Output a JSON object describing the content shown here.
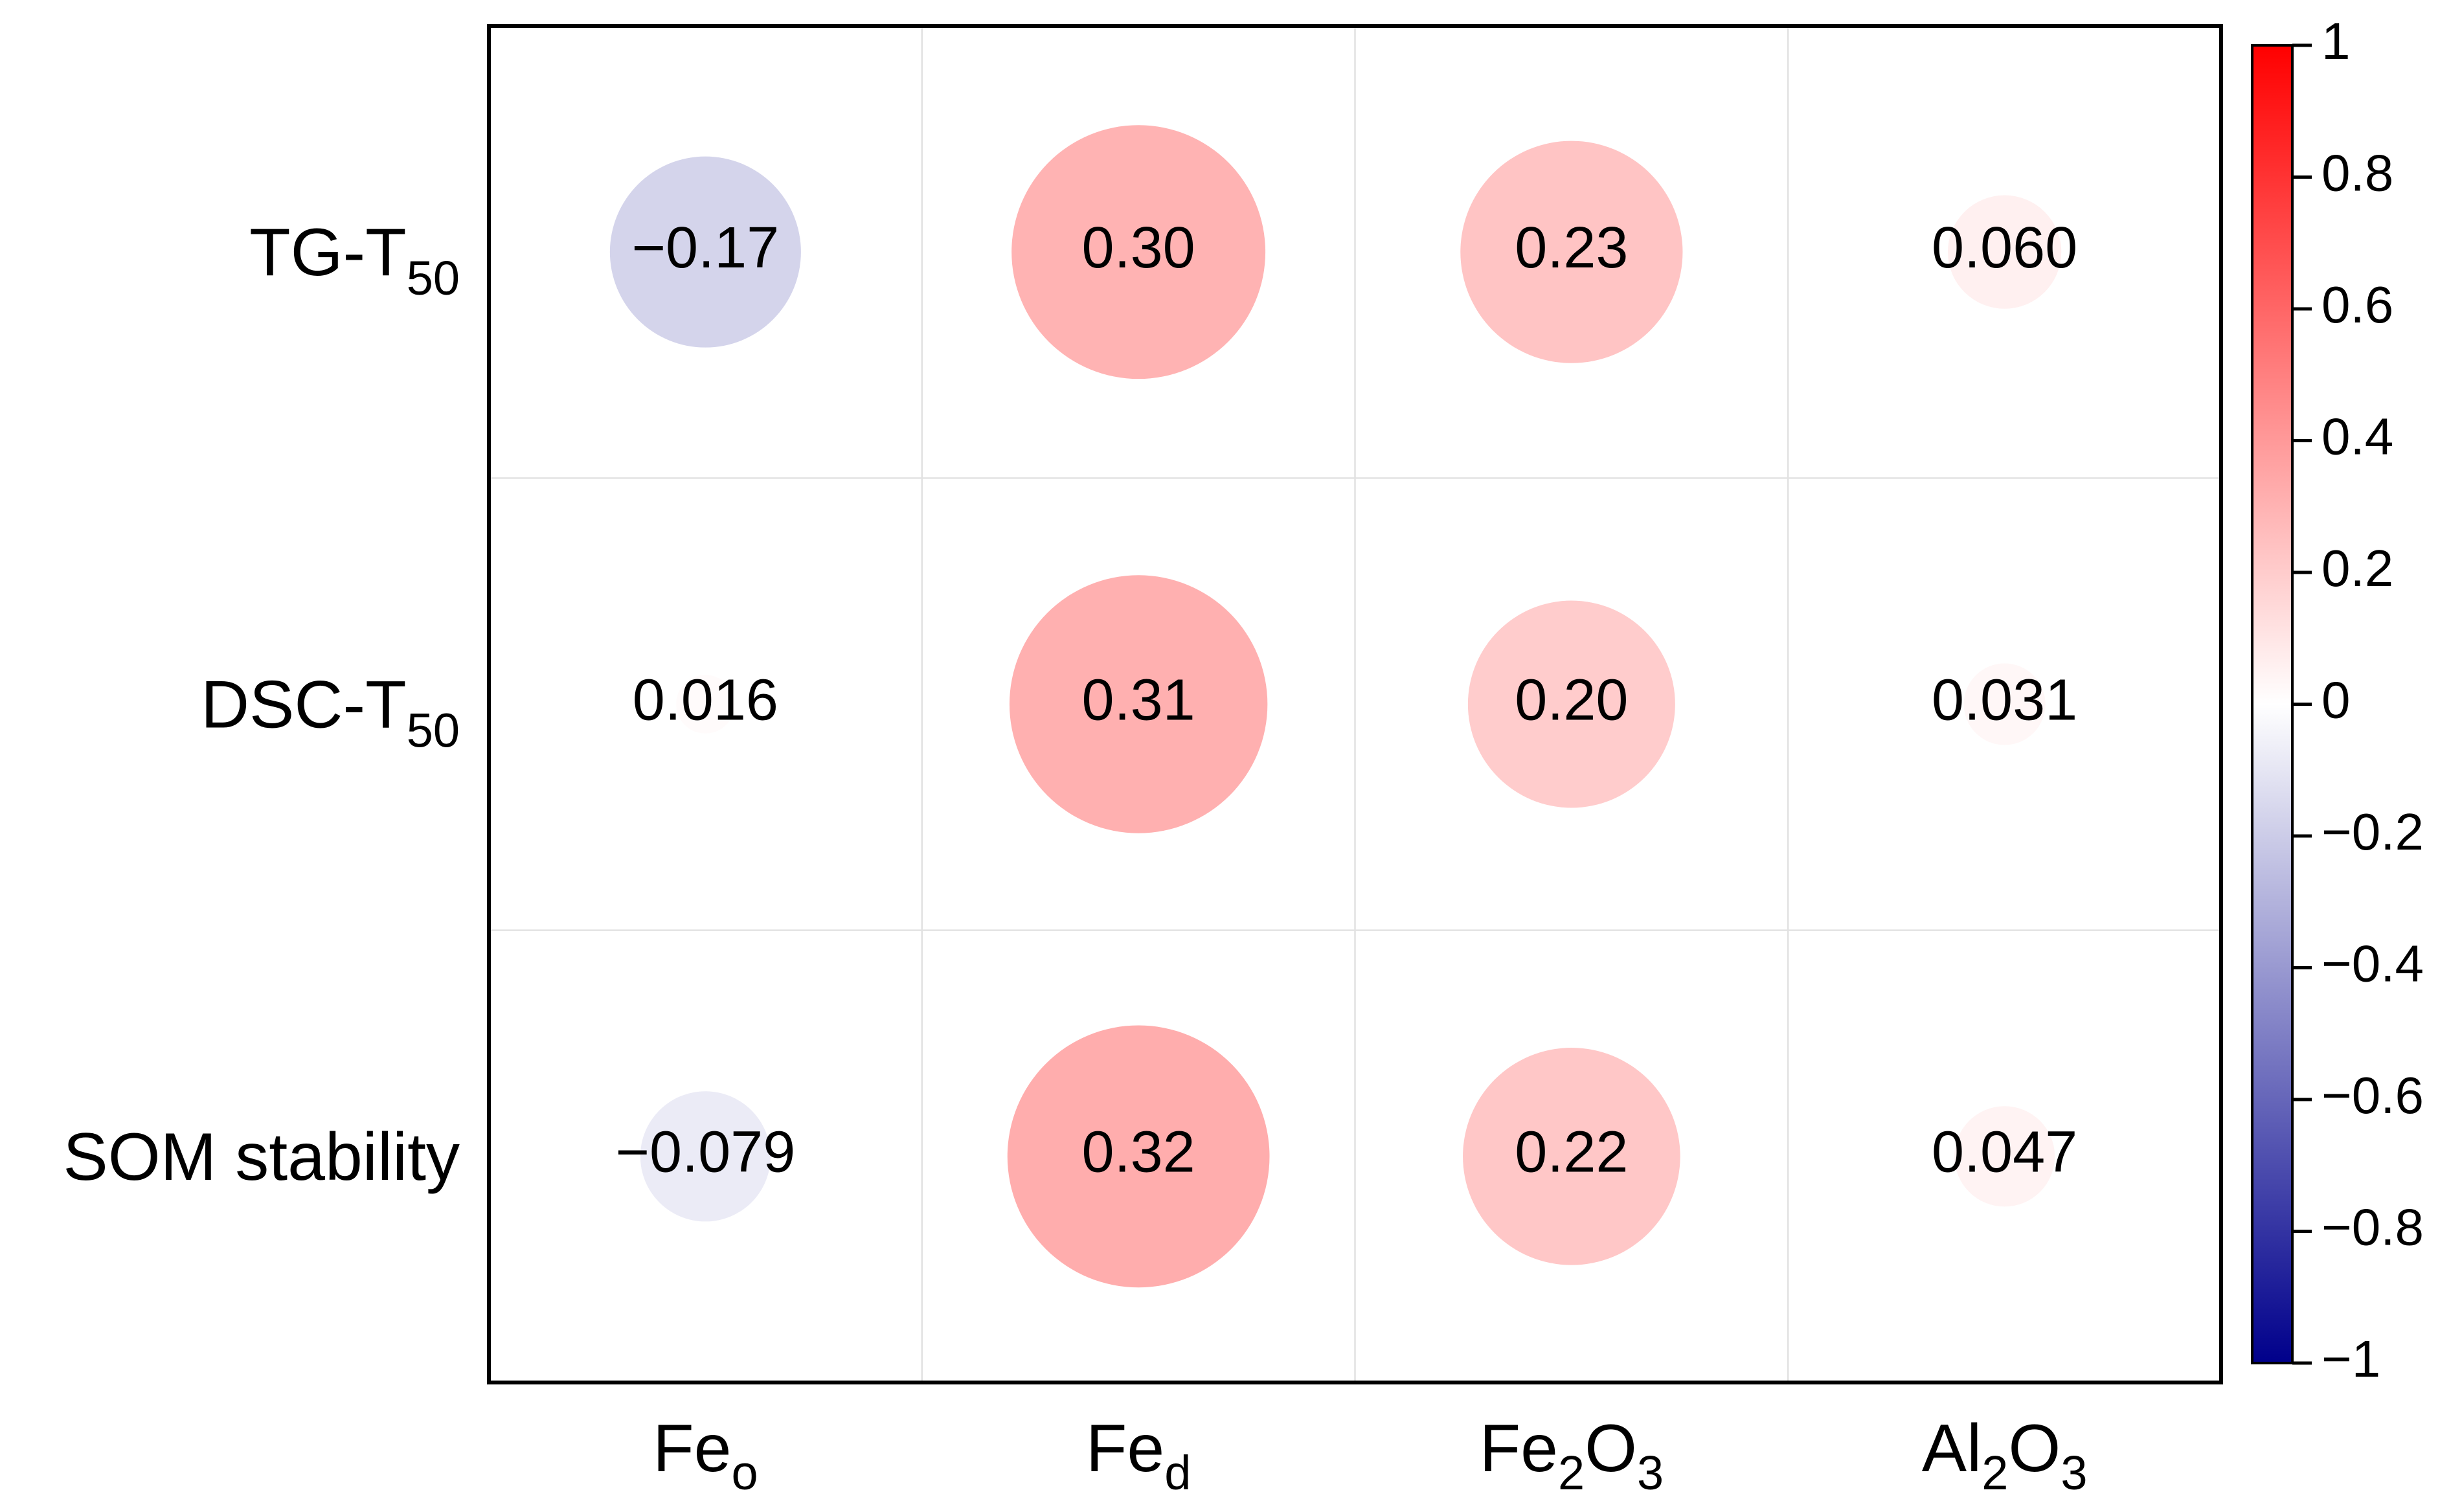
{
  "chart_data": {
    "type": "heatmap",
    "subtype": "correlation-circle-matrix",
    "rows": [
      {
        "label": "TG-T",
        "sub": "50"
      },
      {
        "label": "DSC-T",
        "sub": "50"
      },
      {
        "label": "SOM stability",
        "sub": ""
      }
    ],
    "columns": [
      {
        "parts": [
          {
            "t": "Fe",
            "sub": false
          },
          {
            "t": "o",
            "sub": true
          }
        ]
      },
      {
        "parts": [
          {
            "t": "Fe",
            "sub": false
          },
          {
            "t": "d",
            "sub": true
          }
        ]
      },
      {
        "parts": [
          {
            "t": "Fe",
            "sub": false
          },
          {
            "t": "2",
            "sub": true
          },
          {
            "t": "O",
            "sub": false
          },
          {
            "t": "3",
            "sub": true
          }
        ]
      },
      {
        "parts": [
          {
            "t": "Al",
            "sub": false
          },
          {
            "t": "2",
            "sub": true
          },
          {
            "t": "O",
            "sub": false
          },
          {
            "t": "3",
            "sub": true
          }
        ]
      }
    ],
    "values": [
      [
        -0.17,
        0.3,
        0.23,
        0.06
      ],
      [
        0.016,
        0.31,
        0.2,
        0.031
      ],
      [
        -0.079,
        0.32,
        0.22,
        0.047
      ]
    ],
    "value_labels": [
      [
        "−0.17",
        "0.30",
        "0.23",
        "0.060"
      ],
      [
        "0.016",
        "0.31",
        "0.20",
        "0.031"
      ],
      [
        "−0.079",
        "0.32",
        "0.22",
        "0.047"
      ]
    ],
    "colorbar": {
      "range": [
        -1,
        1
      ],
      "colors": {
        "negative": "#00008b",
        "zero": "#ffffff",
        "positive": "#ff0000"
      },
      "ticks": [
        1,
        0.8,
        0.6,
        0.4,
        0.2,
        0,
        -0.2,
        -0.4,
        -0.6,
        -0.8,
        -1
      ],
      "tick_labels": [
        "1",
        "0.8",
        "0.6",
        "0.4",
        "0.2",
        "0",
        "−0.2",
        "−0.4",
        "−0.6",
        "−0.8",
        "−1"
      ]
    }
  }
}
